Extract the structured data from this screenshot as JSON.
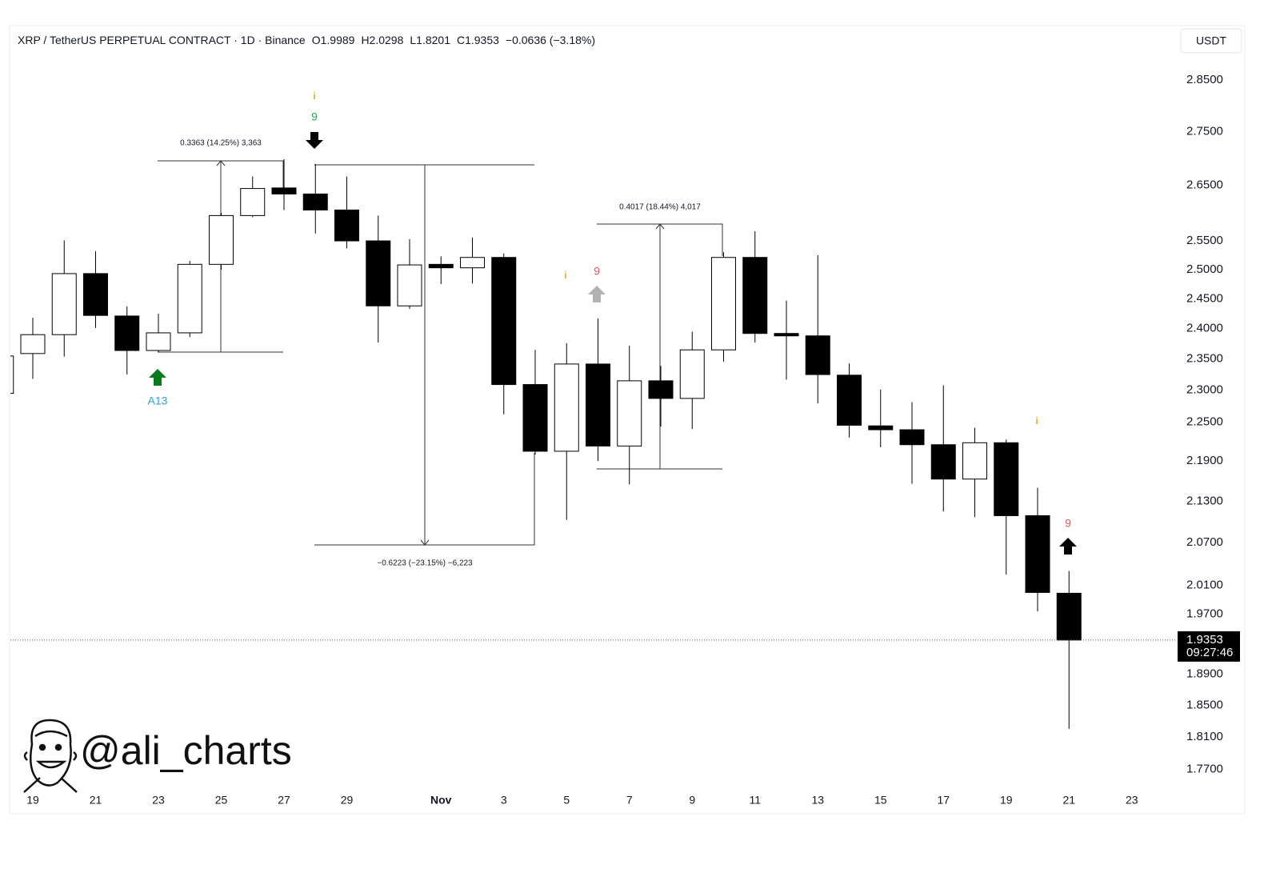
{
  "chart_data": {
    "type": "candlestick",
    "title": "XRP / TetherUS PERPETUAL CONTRACT · 1D · Binance",
    "ohlc_labels": [
      "O1.9989",
      "H2.0298",
      "L1.8201",
      "C1.9353",
      "−0.0636 (−3.18%)"
    ],
    "currency": "USDT",
    "log_scale": true,
    "up_color": "#ffffff",
    "down_color": "#000000",
    "categories": [
      null,
      "19",
      null,
      "21",
      null,
      "23",
      null,
      "25",
      null,
      "27",
      null,
      "29",
      null,
      null,
      "Nov",
      null,
      "3",
      null,
      "5",
      null,
      "7",
      null,
      "9",
      null,
      "11",
      null,
      "13",
      null,
      "15",
      null,
      "17",
      null,
      "19",
      null,
      "21",
      null,
      "23"
    ],
    "open": [
      2.295,
      2.359,
      2.39,
      2.493,
      2.421,
      2.364,
      2.393,
      2.509,
      2.595,
      2.645,
      2.634,
      2.605,
      2.55,
      2.438,
      2.509,
      2.503,
      2.521,
      2.309,
      2.205,
      2.342,
      2.213,
      2.315,
      2.287,
      2.365,
      2.521,
      2.392,
      2.388,
      2.324,
      2.244,
      2.238,
      2.215,
      2.163,
      2.218,
      2.109,
      1.9989,
      null,
      null
    ],
    "high": [
      2.36,
      2.418,
      2.551,
      2.532,
      2.437,
      2.425,
      2.515,
      2.6,
      2.666,
      2.698,
      2.689,
      2.666,
      2.595,
      2.553,
      2.523,
      2.556,
      2.528,
      2.365,
      2.376,
      2.417,
      2.372,
      2.339,
      2.395,
      2.53,
      2.567,
      2.447,
      2.525,
      2.343,
      2.301,
      2.281,
      2.308,
      2.241,
      2.223,
      2.15,
      2.0298,
      null,
      null
    ],
    "low": [
      2.29,
      2.318,
      2.354,
      2.401,
      2.325,
      2.362,
      2.386,
      2.5,
      2.592,
      2.605,
      2.563,
      2.537,
      2.377,
      2.433,
      2.475,
      2.476,
      2.262,
      2.2,
      2.103,
      2.19,
      2.155,
      2.243,
      2.239,
      2.346,
      2.377,
      2.317,
      2.279,
      2.226,
      2.211,
      2.156,
      2.115,
      2.107,
      2.025,
      1.974,
      1.8201,
      null,
      null
    ],
    "close": [
      2.355,
      2.39,
      2.493,
      2.422,
      2.364,
      2.393,
      2.509,
      2.595,
      2.644,
      2.634,
      2.605,
      2.55,
      2.438,
      2.508,
      2.503,
      2.521,
      2.309,
      2.205,
      2.342,
      2.213,
      2.315,
      2.287,
      2.365,
      2.521,
      2.392,
      2.388,
      2.325,
      2.245,
      2.238,
      2.215,
      2.163,
      2.218,
      2.109,
      2.0,
      1.9353,
      null,
      null
    ],
    "ylim": [
      1.747,
      2.959
    ],
    "yticks": [
      {
        "value": 2.85,
        "label": "2.8500"
      },
      {
        "value": 2.75,
        "label": "2.7500"
      },
      {
        "value": 2.65,
        "label": "2.6500"
      },
      {
        "value": 2.55,
        "label": "2.5500"
      },
      {
        "value": 2.5,
        "label": "2.5000"
      },
      {
        "value": 2.45,
        "label": "2.4500"
      },
      {
        "value": 2.4,
        "label": "2.4000"
      },
      {
        "value": 2.35,
        "label": "2.3500"
      },
      {
        "value": 2.3,
        "label": "2.3000"
      },
      {
        "value": 2.25,
        "label": "2.2500"
      },
      {
        "value": 2.19,
        "label": "2.1900"
      },
      {
        "value": 2.13,
        "label": "2.1300"
      },
      {
        "value": 2.07,
        "label": "2.0700"
      },
      {
        "value": 2.01,
        "label": "2.0100"
      },
      {
        "value": 1.97,
        "label": "1.9700"
      },
      {
        "value": 1.89,
        "label": "1.8900"
      },
      {
        "value": 1.85,
        "label": "1.8500"
      },
      {
        "value": 1.81,
        "label": "1.8100"
      },
      {
        "value": 1.77,
        "label": "1.7700"
      }
    ],
    "last_price": 1.9353,
    "countdown": "09:27:46",
    "measurements": [
      "0.3363 (14.25%) 3,363",
      "−0.6223 (−23.15%) −6,223",
      "0.4017 (18.44%) 4,017"
    ],
    "annotations": [
      "i",
      "9",
      "A13",
      "i",
      "9",
      "i",
      "9"
    ],
    "watermark": "@ali_charts"
  }
}
